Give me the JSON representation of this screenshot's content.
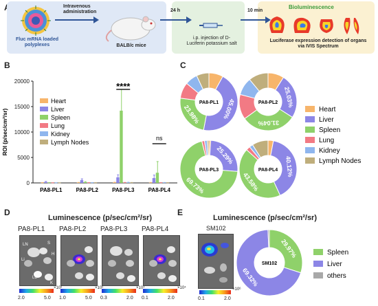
{
  "panel_labels": {
    "a": "A",
    "b": "B",
    "c": "C",
    "d": "D",
    "e": "E"
  },
  "schematic": {
    "nanoparticle_label": "Fluc mRNA loaded polyplexes",
    "route_label": "Intravenous administration",
    "mouse_label": "BALB/c mice",
    "time1": "24 h",
    "injection_label": "i.p. injection of D-Luciferin potassium salt",
    "time2": "10 min",
    "bio_title": "Bioluminescence",
    "detection_label": "Luciferase expression detection of organs via IVIS Spectrum",
    "colors": {
      "box1": "#dfe8f6",
      "box2": "#e4f1e0",
      "box3": "#fbf1d2",
      "arrow": "#2f5597",
      "bio_title": "#3a9a3a"
    }
  },
  "panel_b": {
    "ylabel": "ROI (p/sec/cm²/sr)",
    "sig1": "****",
    "sig2": "ns",
    "legend": [
      "Heart",
      "Liver",
      "Spleen",
      "Lung",
      "Kidney",
      "Lymph Nodes"
    ]
  },
  "chart_data": [
    {
      "type": "bar",
      "panel": "B",
      "categories": [
        "PA8-PL1",
        "PA8-PL2",
        "PA8-PL3",
        "PA8-PL4"
      ],
      "ylabel": "ROI (p/sec/cm²/sr)",
      "ylim": [
        0,
        20000
      ],
      "yticks": [
        0,
        5000,
        10000,
        15000,
        20000
      ],
      "colors": {
        "Heart": "#f7b56b",
        "Liver": "#8c86e6",
        "Spleen": "#8fd16a",
        "Lung": "#f27a84",
        "Kidney": "#8fb6ee",
        "Lymph Nodes": "#bfae7c"
      },
      "series": [
        {
          "name": "Heart",
          "values": [
            40,
            60,
            80,
            50
          ],
          "errors": [
            30,
            40,
            60,
            40
          ]
        },
        {
          "name": "Liver",
          "values": [
            180,
            550,
            1100,
            950
          ],
          "errors": [
            120,
            250,
            500,
            600
          ]
        },
        {
          "name": "Spleen",
          "values": [
            40,
            150,
            14200,
            2000
          ],
          "errors": [
            30,
            100,
            4200,
            2200
          ]
        },
        {
          "name": "Lung",
          "values": [
            30,
            40,
            60,
            40
          ],
          "errors": [
            20,
            30,
            40,
            30
          ]
        },
        {
          "name": "Kidney",
          "values": [
            30,
            40,
            80,
            50
          ],
          "errors": [
            20,
            30,
            60,
            40
          ]
        },
        {
          "name": "Lymph Nodes",
          "values": [
            30,
            40,
            50,
            40
          ],
          "errors": [
            20,
            30,
            40,
            30
          ]
        }
      ],
      "legend": [
        "Heart",
        "Liver",
        "Spleen",
        "Lung",
        "Kidney",
        "Lymph Nodes"
      ]
    },
    {
      "type": "pie",
      "panel": "C",
      "charts": [
        {
          "center": "PA8-PL1",
          "slices": [
            {
              "name": "Heart",
              "value": 8.0
            },
            {
              "name": "Liver",
              "value": 45.0,
              "label": "45.00%"
            },
            {
              "name": "Spleen",
              "value": 23.98,
              "label": "23.98%"
            },
            {
              "name": "Lung",
              "value": 9.0
            },
            {
              "name": "Kidney",
              "value": 7.0
            },
            {
              "name": "Lymph Nodes",
              "value": 7.02
            }
          ]
        },
        {
          "center": "PA8-PL2",
          "slices": [
            {
              "name": "Heart",
              "value": 9.0
            },
            {
              "name": "Liver",
              "value": 25.03,
              "label": "25.03%"
            },
            {
              "name": "Spleen",
              "value": 31.04,
              "label": "31.04%"
            },
            {
              "name": "Lung",
              "value": 14.0
            },
            {
              "name": "Kidney",
              "value": 9.93
            },
            {
              "name": "Lymph Nodes",
              "value": 11.0
            }
          ]
        },
        {
          "center": "PA8-PL3",
          "slices": [
            {
              "name": "Heart",
              "value": 1.0
            },
            {
              "name": "Liver",
              "value": 25.29,
              "label": "25.29%"
            },
            {
              "name": "Spleen",
              "value": 69.73,
              "label": "69.73%"
            },
            {
              "name": "Lung",
              "value": 1.5
            },
            {
              "name": "Kidney",
              "value": 1.5
            },
            {
              "name": "Lymph Nodes",
              "value": 0.98
            }
          ]
        },
        {
          "center": "PA8-PL4",
          "slices": [
            {
              "name": "Heart",
              "value": 3.0
            },
            {
              "name": "Liver",
              "value": 40.12,
              "label": "40.12%"
            },
            {
              "name": "Spleen",
              "value": 43.58,
              "label": "43.58%"
            },
            {
              "name": "Lung",
              "value": 2.3
            },
            {
              "name": "Kidney",
              "value": 2.0
            },
            {
              "name": "Lymph Nodes",
              "value": 9.0
            }
          ]
        }
      ],
      "legend": [
        "Heart",
        "Liver",
        "Spleen",
        "Lung",
        "Kidney",
        "Lymph Nodes"
      ]
    },
    {
      "type": "pie",
      "panel": "E",
      "charts": [
        {
          "center": "SM102",
          "slices": [
            {
              "name": "Spleen",
              "value": 29.97,
              "label": "29.97%"
            },
            {
              "name": "Liver",
              "value": 69.32,
              "label": "69.32%"
            },
            {
              "name": "others",
              "value": 0.71
            }
          ]
        }
      ],
      "legend": [
        "Spleen",
        "Liver",
        "others"
      ],
      "colors": {
        "Spleen": "#8fd16a",
        "Liver": "#8c86e6",
        "others": "#a8a8a8"
      }
    }
  ],
  "panel_d": {
    "title": "Luminescence (p/sec/cm²/sr)",
    "images": [
      {
        "label": "PA8-PL1",
        "scale_min": "2.0",
        "scale_max": "5.0",
        "unit": "×10³"
      },
      {
        "label": "PA8-PL2",
        "scale_min": "1.0",
        "scale_max": "5.0",
        "unit": "×10³"
      },
      {
        "label": "PA8-PL3",
        "scale_min": "0.3",
        "scale_max": "2.0",
        "unit": "×10⁴"
      },
      {
        "label": "PA8-PL4",
        "scale_min": "0.1",
        "scale_max": "2.0",
        "unit": "×10⁴"
      }
    ],
    "organ_letters": [
      "LN",
      "S",
      "H",
      "Li",
      "Lu",
      "K"
    ]
  },
  "panel_e": {
    "title": "Luminescence (p/sec/cm²/sr)",
    "image_label": "SM102",
    "scale_min": "0.1",
    "scale_max": "2.0",
    "unit": "×10⁶"
  }
}
